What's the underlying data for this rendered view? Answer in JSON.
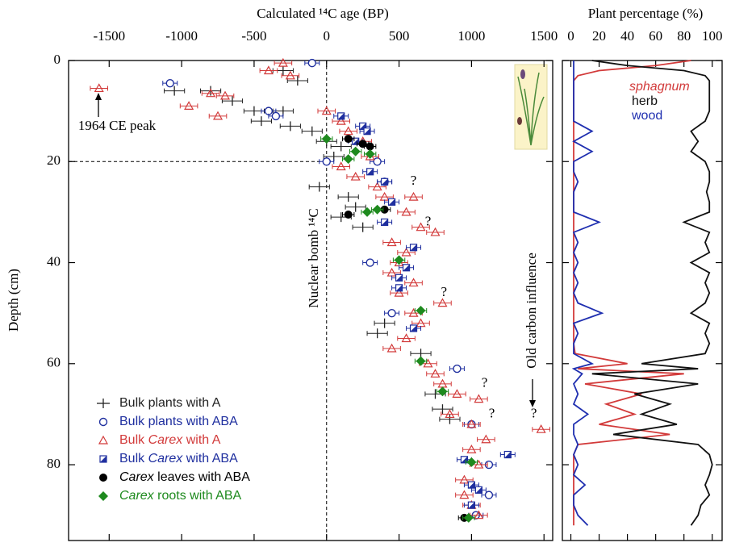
{
  "chart_data": [
    {
      "type": "scatter",
      "x_label": "Calculated ¹⁴C age (BP)",
      "y_label": "Depth (cm)",
      "xlim": [
        -1780,
        1560
      ],
      "ylim": [
        0,
        95
      ],
      "xticks": [
        -1500,
        -1000,
        -500,
        0,
        500,
        1000,
        1500
      ],
      "yticks": [
        0,
        20,
        40,
        60,
        80
      ],
      "y_inverted": true,
      "annotations": [
        "1964 CE peak",
        "Nuclear bomb ¹⁴C",
        "Old carbon influence",
        "?",
        "?",
        "?",
        "?",
        "?",
        "?"
      ],
      "series": [
        {
          "name": "Bulk plants with A",
          "color": "#222222",
          "marker": "plus",
          "x_error": 70,
          "x": [
            -300,
            -200,
            -800,
            -1050,
            -650,
            -500,
            -300,
            -450,
            -250,
            -100,
            0,
            100,
            50,
            -50,
            150,
            200,
            100,
            250,
            400,
            350,
            650,
            750,
            800,
            850
          ],
          "y": [
            2,
            4,
            6,
            6,
            8,
            10,
            10,
            12,
            13,
            14,
            16,
            17,
            19,
            25,
            27,
            29,
            31,
            33,
            52,
            54,
            58,
            66,
            69,
            71
          ]
        },
        {
          "name": "Bulk plants with ABA",
          "color": "#1f2f9f",
          "marker": "open-circle",
          "x_error": 50,
          "x": [
            -100,
            -1080,
            -400,
            -350,
            0,
            350,
            400,
            300,
            450,
            900,
            1000,
            1120,
            1120,
            1030
          ],
          "y": [
            0.5,
            4.5,
            10,
            11,
            20,
            20,
            24,
            40,
            50,
            61,
            72,
            80,
            86,
            90
          ]
        },
        {
          "name": "Bulk Carex with A",
          "color": "#d23a3a",
          "marker": "open-triangle",
          "x_error": 60,
          "x": [
            -300,
            -400,
            -250,
            -1570,
            -800,
            -700,
            -950,
            -750,
            0,
            100,
            150,
            250,
            300,
            100,
            200,
            350,
            400,
            600,
            550,
            650,
            750,
            450,
            550,
            500,
            450,
            600,
            500,
            800,
            600,
            650,
            550,
            450,
            700,
            750,
            800,
            900,
            1050,
            850,
            1000,
            1480,
            1100,
            1000,
            1050,
            950,
            950,
            1000,
            1050
          ],
          "y": [
            0.5,
            2,
            3,
            5.5,
            6.5,
            7,
            9,
            11,
            10,
            12,
            14,
            16,
            19,
            21,
            23,
            25,
            27,
            27,
            30,
            33,
            34,
            36,
            38,
            40,
            42,
            44,
            46,
            48,
            50,
            52,
            55,
            57,
            60,
            62,
            64,
            66,
            67,
            70,
            72,
            73,
            75,
            77,
            80,
            83,
            86,
            88,
            90
          ]
        },
        {
          "name": "Bulk Carex with ABA",
          "color": "#1f2f9f",
          "marker": "half-square",
          "x_error": 50,
          "x": [
            100,
            250,
            280,
            200,
            300,
            400,
            450,
            400,
            600,
            550,
            500,
            500,
            600,
            1250,
            950,
            1000,
            1050,
            1000
          ],
          "y": [
            11,
            13,
            14,
            16,
            22,
            24,
            28,
            32,
            37,
            41,
            43,
            45,
            53,
            78,
            79,
            84,
            85,
            88
          ]
        },
        {
          "name": "Carex leaves with ABA",
          "color": "#000000",
          "marker": "filled-circle",
          "x_error": 40,
          "x": [
            150,
            250,
            300,
            400,
            150,
            950
          ],
          "y": [
            15.5,
            16.5,
            17,
            29.5,
            30.5,
            90.5
          ]
        },
        {
          "name": "Carex roots with ABA",
          "color": "#1e8a1e",
          "marker": "diamond",
          "x_error": 40,
          "x": [
            0,
            200,
            300,
            150,
            350,
            280,
            500,
            650,
            650,
            800,
            1000,
            980
          ],
          "y": [
            15.5,
            18,
            18.5,
            19.5,
            29.5,
            30,
            39.5,
            49.5,
            59.5,
            65.5,
            79.5,
            90.5
          ]
        }
      ]
    },
    {
      "type": "line",
      "title": "Plant percentage (%)",
      "xlim": [
        -6,
        107
      ],
      "ylim": [
        0,
        95
      ],
      "xticks": [
        0,
        20,
        40,
        60,
        80,
        100
      ],
      "yticks": [
        0,
        20,
        40,
        60,
        80
      ],
      "y_inverted": true,
      "depth": [
        0,
        1,
        2,
        3,
        4,
        6,
        8,
        10,
        12,
        14,
        16,
        18,
        20,
        22,
        24,
        26,
        28,
        30,
        32,
        34,
        36,
        38,
        40,
        42,
        44,
        46,
        48,
        50,
        52,
        54,
        56,
        58,
        60,
        61,
        62,
        64,
        66,
        68,
        70,
        72,
        74,
        76,
        78,
        80,
        82,
        84,
        86,
        88,
        90,
        92
      ],
      "series": [
        {
          "name": "sphagnum",
          "color": "#d23a3a",
          "values": [
            85,
            60,
            20,
            5,
            2,
            2,
            2,
            2,
            2,
            2,
            2,
            2,
            2,
            2,
            2,
            2,
            2,
            2,
            2,
            2,
            2,
            2,
            2,
            2,
            2,
            2,
            2,
            2,
            2,
            2,
            2,
            3,
            40,
            5,
            80,
            10,
            50,
            25,
            45,
            20,
            70,
            5,
            2,
            2,
            2,
            2,
            2,
            2,
            2,
            2
          ]
        },
        {
          "name": "herb",
          "color": "#111111",
          "values": [
            15,
            40,
            80,
            95,
            98,
            98,
            98,
            98,
            95,
            85,
            90,
            85,
            95,
            98,
            98,
            96,
            98,
            98,
            80,
            98,
            95,
            98,
            85,
            98,
            95,
            98,
            95,
            85,
            98,
            95,
            98,
            95,
            50,
            90,
            15,
            90,
            45,
            70,
            50,
            75,
            30,
            90,
            98,
            100,
            98,
            95,
            98,
            92,
            90,
            85
          ]
        },
        {
          "name": "wood",
          "color": "#1f2fb0",
          "values": [
            2,
            2,
            2,
            2,
            2,
            2,
            2,
            2,
            2,
            15,
            2,
            15,
            2,
            2,
            5,
            2,
            2,
            2,
            20,
            2,
            5,
            2,
            5,
            2,
            5,
            2,
            5,
            22,
            2,
            5,
            2,
            2,
            15,
            2,
            8,
            2,
            5,
            2,
            12,
            2,
            2,
            5,
            2,
            5,
            2,
            10,
            2,
            2,
            5,
            12
          ]
        }
      ]
    }
  ]
}
